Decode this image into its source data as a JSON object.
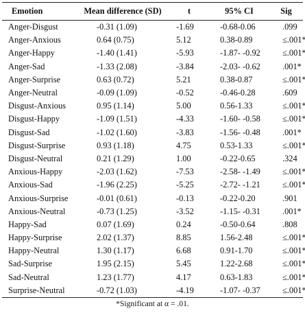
{
  "table": {
    "headers": {
      "emotion": "Emotion",
      "mean": "Mean difference (SD)",
      "t": "t",
      "ci": "95% CI",
      "sig": "Sig"
    },
    "rows": [
      {
        "emotion": "Anger-Disgust",
        "mean": "-0.31 (1.09)",
        "t": "-1.69",
        "ci": "-0.68-0.06",
        "sig": ".099"
      },
      {
        "emotion": "Anger-Anxious",
        "mean": "0.64 (0.75)",
        "t": "5.12",
        "ci": "0.38-0.89",
        "sig": "≤.001*"
      },
      {
        "emotion": "Anger-Happy",
        "mean": "-1.40 (1.41)",
        "t": "-5.93",
        "ci": "-1.87- -0.92",
        "sig": "≤.001*"
      },
      {
        "emotion": "Anger-Sad",
        "mean": "-1.33 (2.08)",
        "t": "-3.84",
        "ci": "-2.03- -0.62",
        "sig": ".001*"
      },
      {
        "emotion": "Anger-Surprise",
        "mean": "0.63 (0.72)",
        "t": "5.21",
        "ci": "0.38-0.87",
        "sig": "≤.001*"
      },
      {
        "emotion": "Anger-Neutral",
        "mean": "-0.09 (1.09)",
        "t": "-0.52",
        "ci": "-0.46-0.28",
        "sig": ".609"
      },
      {
        "emotion": "Disgust-Anxious",
        "mean": "0.95 (1.14)",
        "t": "5.00",
        "ci": "0.56-1.33",
        "sig": "≤.001*"
      },
      {
        "emotion": "Disgust-Happy",
        "mean": "-1.09 (1.51)",
        "t": "-4.33",
        "ci": "-1.60- -0.58",
        "sig": "≤.001*"
      },
      {
        "emotion": "Disgust-Sad",
        "mean": "-1.02 (1.60)",
        "t": "-3.83",
        "ci": "-1.56- -0.48",
        "sig": ".001*"
      },
      {
        "emotion": "Disgust-Surprise",
        "mean": "0.93 (1.18)",
        "t": "4.75",
        "ci": "0.53-1.33",
        "sig": "≤.001*"
      },
      {
        "emotion": "Disgust-Neutral",
        "mean": "0.21 (1.29)",
        "t": "1.00",
        "ci": "-0.22-0.65",
        "sig": ".324"
      },
      {
        "emotion": "Anxious-Happy",
        "mean": "-2.03 (1.62)",
        "t": "-7.53",
        "ci": "-2.58- -1.49",
        "sig": "≤.001*"
      },
      {
        "emotion": "Anxious-Sad",
        "mean": "-1.96 (2.25)",
        "t": "-5.25",
        "ci": "-2.72- -1.21",
        "sig": "≤.001*"
      },
      {
        "emotion": "Anxious-Surprise",
        "mean": "-0.01 (0.61)",
        "t": "-0.13",
        "ci": "-0.22-0.20",
        "sig": ".901"
      },
      {
        "emotion": "Anxious-Neutral",
        "mean": "-0.73 (1.25)",
        "t": "-3.52",
        "ci": "-1.15- -0.31",
        "sig": ".001*"
      },
      {
        "emotion": "Happy-Sad",
        "mean": "0.07 (1.69)",
        "t": "0.24",
        "ci": "-0.50-0.64",
        "sig": ".808"
      },
      {
        "emotion": "Happy-Surprise",
        "mean": "2.02 (1.37)",
        "t": "8.85",
        "ci": "1.56-2.48",
        "sig": "≤.001*"
      },
      {
        "emotion": "Happy-Neutral",
        "mean": "1.30 (1.17)",
        "t": "6.68",
        "ci": "0.91-1.70",
        "sig": "≤.001*"
      },
      {
        "emotion": "Sad-Surprise",
        "mean": "1.95 (2.15)",
        "t": "5.45",
        "ci": "1.22-2.68",
        "sig": "≤.001*"
      },
      {
        "emotion": "Sad-Neutral",
        "mean": "1.23 (1.77)",
        "t": "4.17",
        "ci": "0.63-1.83",
        "sig": "≤.001*"
      },
      {
        "emotion": "Surprise-Neutral",
        "mean": "-0.72 (1.03)",
        "t": "-4.19",
        "ci": "-1.07- -0.37",
        "sig": "≤.001*"
      }
    ]
  },
  "footnote": "*Significant at α = .01."
}
